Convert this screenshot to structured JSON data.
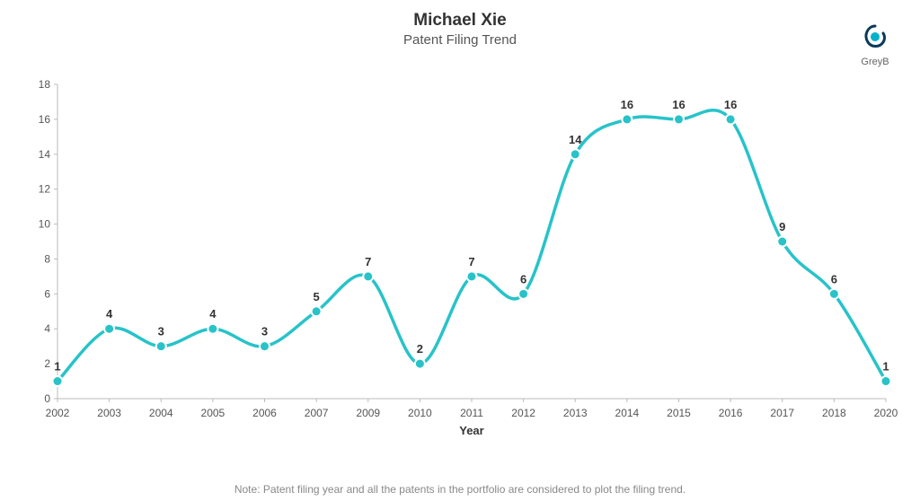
{
  "header": {
    "title": "Michael Xie",
    "subtitle": "Patent Filing Trend",
    "title_fontsize": 19,
    "subtitle_fontsize": 15,
    "title_color": "#333333",
    "subtitle_color": "#555555"
  },
  "logo": {
    "text": "GreyB",
    "icon_colors": {
      "inner": "#00b2c9",
      "outer": "#0a3a5a"
    }
  },
  "chart": {
    "type": "line",
    "x_title": "Year",
    "x_categories": [
      "2002",
      "2003",
      "2004",
      "2005",
      "2006",
      "2007",
      "2009",
      "2010",
      "2011",
      "2012",
      "2013",
      "2014",
      "2015",
      "2016",
      "2017",
      "2018",
      "2020"
    ],
    "values": [
      1,
      4,
      3,
      4,
      3,
      5,
      7,
      2,
      7,
      6,
      14,
      16,
      16,
      16,
      9,
      6,
      1
    ],
    "data_labels": [
      "1",
      "4",
      "3",
      "4",
      "3",
      "5",
      "7",
      "2",
      "7",
      "6",
      "14",
      "16",
      "16",
      "16",
      "9",
      "6",
      "1"
    ],
    "ylim": [
      0,
      18
    ],
    "ytick_step": 2,
    "line_color": "#27c3c9",
    "line_width": 3.5,
    "marker_color": "#27c3c9",
    "marker_radius": 5.5,
    "marker_border": "#ffffff",
    "axis_color": "#bbbbbb",
    "background_color": "#ffffff",
    "label_fontsize": 13,
    "tick_fontsize": 12
  },
  "footnote": "Note: Patent filing year and all the patents in the portfolio are considered to plot the filing trend."
}
